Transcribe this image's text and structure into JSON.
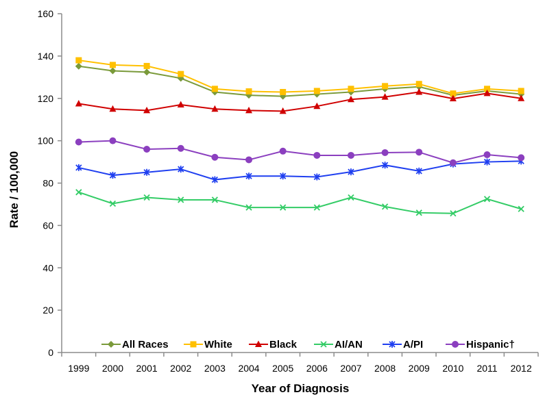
{
  "chart_data": {
    "type": "line",
    "title": "",
    "xlabel": "Year of Diagnosis",
    "ylabel": "Rate / 100,000",
    "ylim": [
      0,
      160
    ],
    "yticks": [
      0,
      20,
      40,
      60,
      80,
      100,
      120,
      140,
      160
    ],
    "grid": false,
    "legend_position": "bottom-inside",
    "categories": [
      "1999",
      "2000",
      "2001",
      "2002",
      "2003",
      "2004",
      "2005",
      "2006",
      "2007",
      "2008",
      "2009",
      "2010",
      "2011",
      "2012"
    ],
    "series": [
      {
        "name": "All Races",
        "color": "#7a9a3a",
        "marker": "diamond",
        "values": [
          135.2,
          133.0,
          132.4,
          129.5,
          123.0,
          121.5,
          121.0,
          122.0,
          123.0,
          124.5,
          125.5,
          121.5,
          123.5,
          122.0
        ]
      },
      {
        "name": "White",
        "color": "#ffc000",
        "marker": "square",
        "values": [
          138.0,
          135.8,
          135.3,
          131.5,
          124.5,
          123.3,
          123.0,
          123.5,
          124.5,
          125.8,
          126.8,
          122.3,
          124.5,
          123.5
        ]
      },
      {
        "name": "Black",
        "color": "#d00000",
        "marker": "triangle",
        "values": [
          117.5,
          115.0,
          114.3,
          117.0,
          115.0,
          114.3,
          114.0,
          116.3,
          119.5,
          120.7,
          123.0,
          119.9,
          122.4,
          120.0
        ]
      },
      {
        "name": "AI/AN",
        "color": "#33cc66",
        "marker": "x",
        "values": [
          75.7,
          70.3,
          73.2,
          72.1,
          72.1,
          68.5,
          68.5,
          68.5,
          73.2,
          68.9,
          66.0,
          65.7,
          72.5,
          67.8
        ]
      },
      {
        "name": "A/PI",
        "color": "#1f3ff0",
        "marker": "star",
        "values": [
          87.3,
          83.7,
          85.1,
          86.6,
          81.6,
          83.3,
          83.3,
          82.9,
          85.3,
          88.5,
          85.7,
          89.0,
          90.0,
          90.4
        ]
      },
      {
        "name": "Hispanic†",
        "color": "#8b3fbf",
        "marker": "circle",
        "values": [
          99.4,
          100.0,
          96.0,
          96.4,
          92.2,
          91.0,
          95.1,
          93.1,
          93.1,
          94.4,
          94.6,
          89.6,
          93.4,
          92.0
        ]
      }
    ]
  }
}
